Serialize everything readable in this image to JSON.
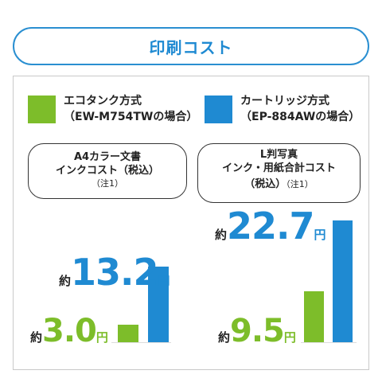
{
  "title": "印刷コスト",
  "legend": [
    {
      "line1": "エコタンク方式",
      "line2": "（EW-M754TWの場合）",
      "color": "#7dbd2a"
    },
    {
      "line1": "カートリッジ方式",
      "line2": "（EP-884AWの場合）",
      "color": "#1f8ad2"
    }
  ],
  "colors": {
    "green": "#7dbd2a",
    "blue": "#1f8ad2"
  },
  "chart_data": [
    {
      "type": "bar",
      "title": "A4カラー文書 インクコスト（税込）",
      "title_lines": [
        "A4カラー文書",
        "インクコスト（税込）"
      ],
      "note": "（注1）",
      "categories": [
        "エコタンク方式",
        "カートリッジ方式"
      ],
      "values": [
        3.0,
        13.2
      ],
      "value_labels": [
        "3.0",
        "13.2"
      ],
      "prefix": "約",
      "unit": "円",
      "ylim": [
        0,
        13.2
      ]
    },
    {
      "type": "bar",
      "title": "L判写真 インク・用紙合計コスト（税込）",
      "title_lines": [
        "L判写真",
        "インク・用紙合計コスト",
        "（税込）"
      ],
      "note": "（注1）",
      "categories": [
        "エコタンク方式",
        "カートリッジ方式"
      ],
      "values": [
        9.5,
        22.7
      ],
      "value_labels": [
        "9.5",
        "22.7"
      ],
      "prefix": "約",
      "unit": "円",
      "ylim": [
        0,
        22.7
      ]
    }
  ]
}
